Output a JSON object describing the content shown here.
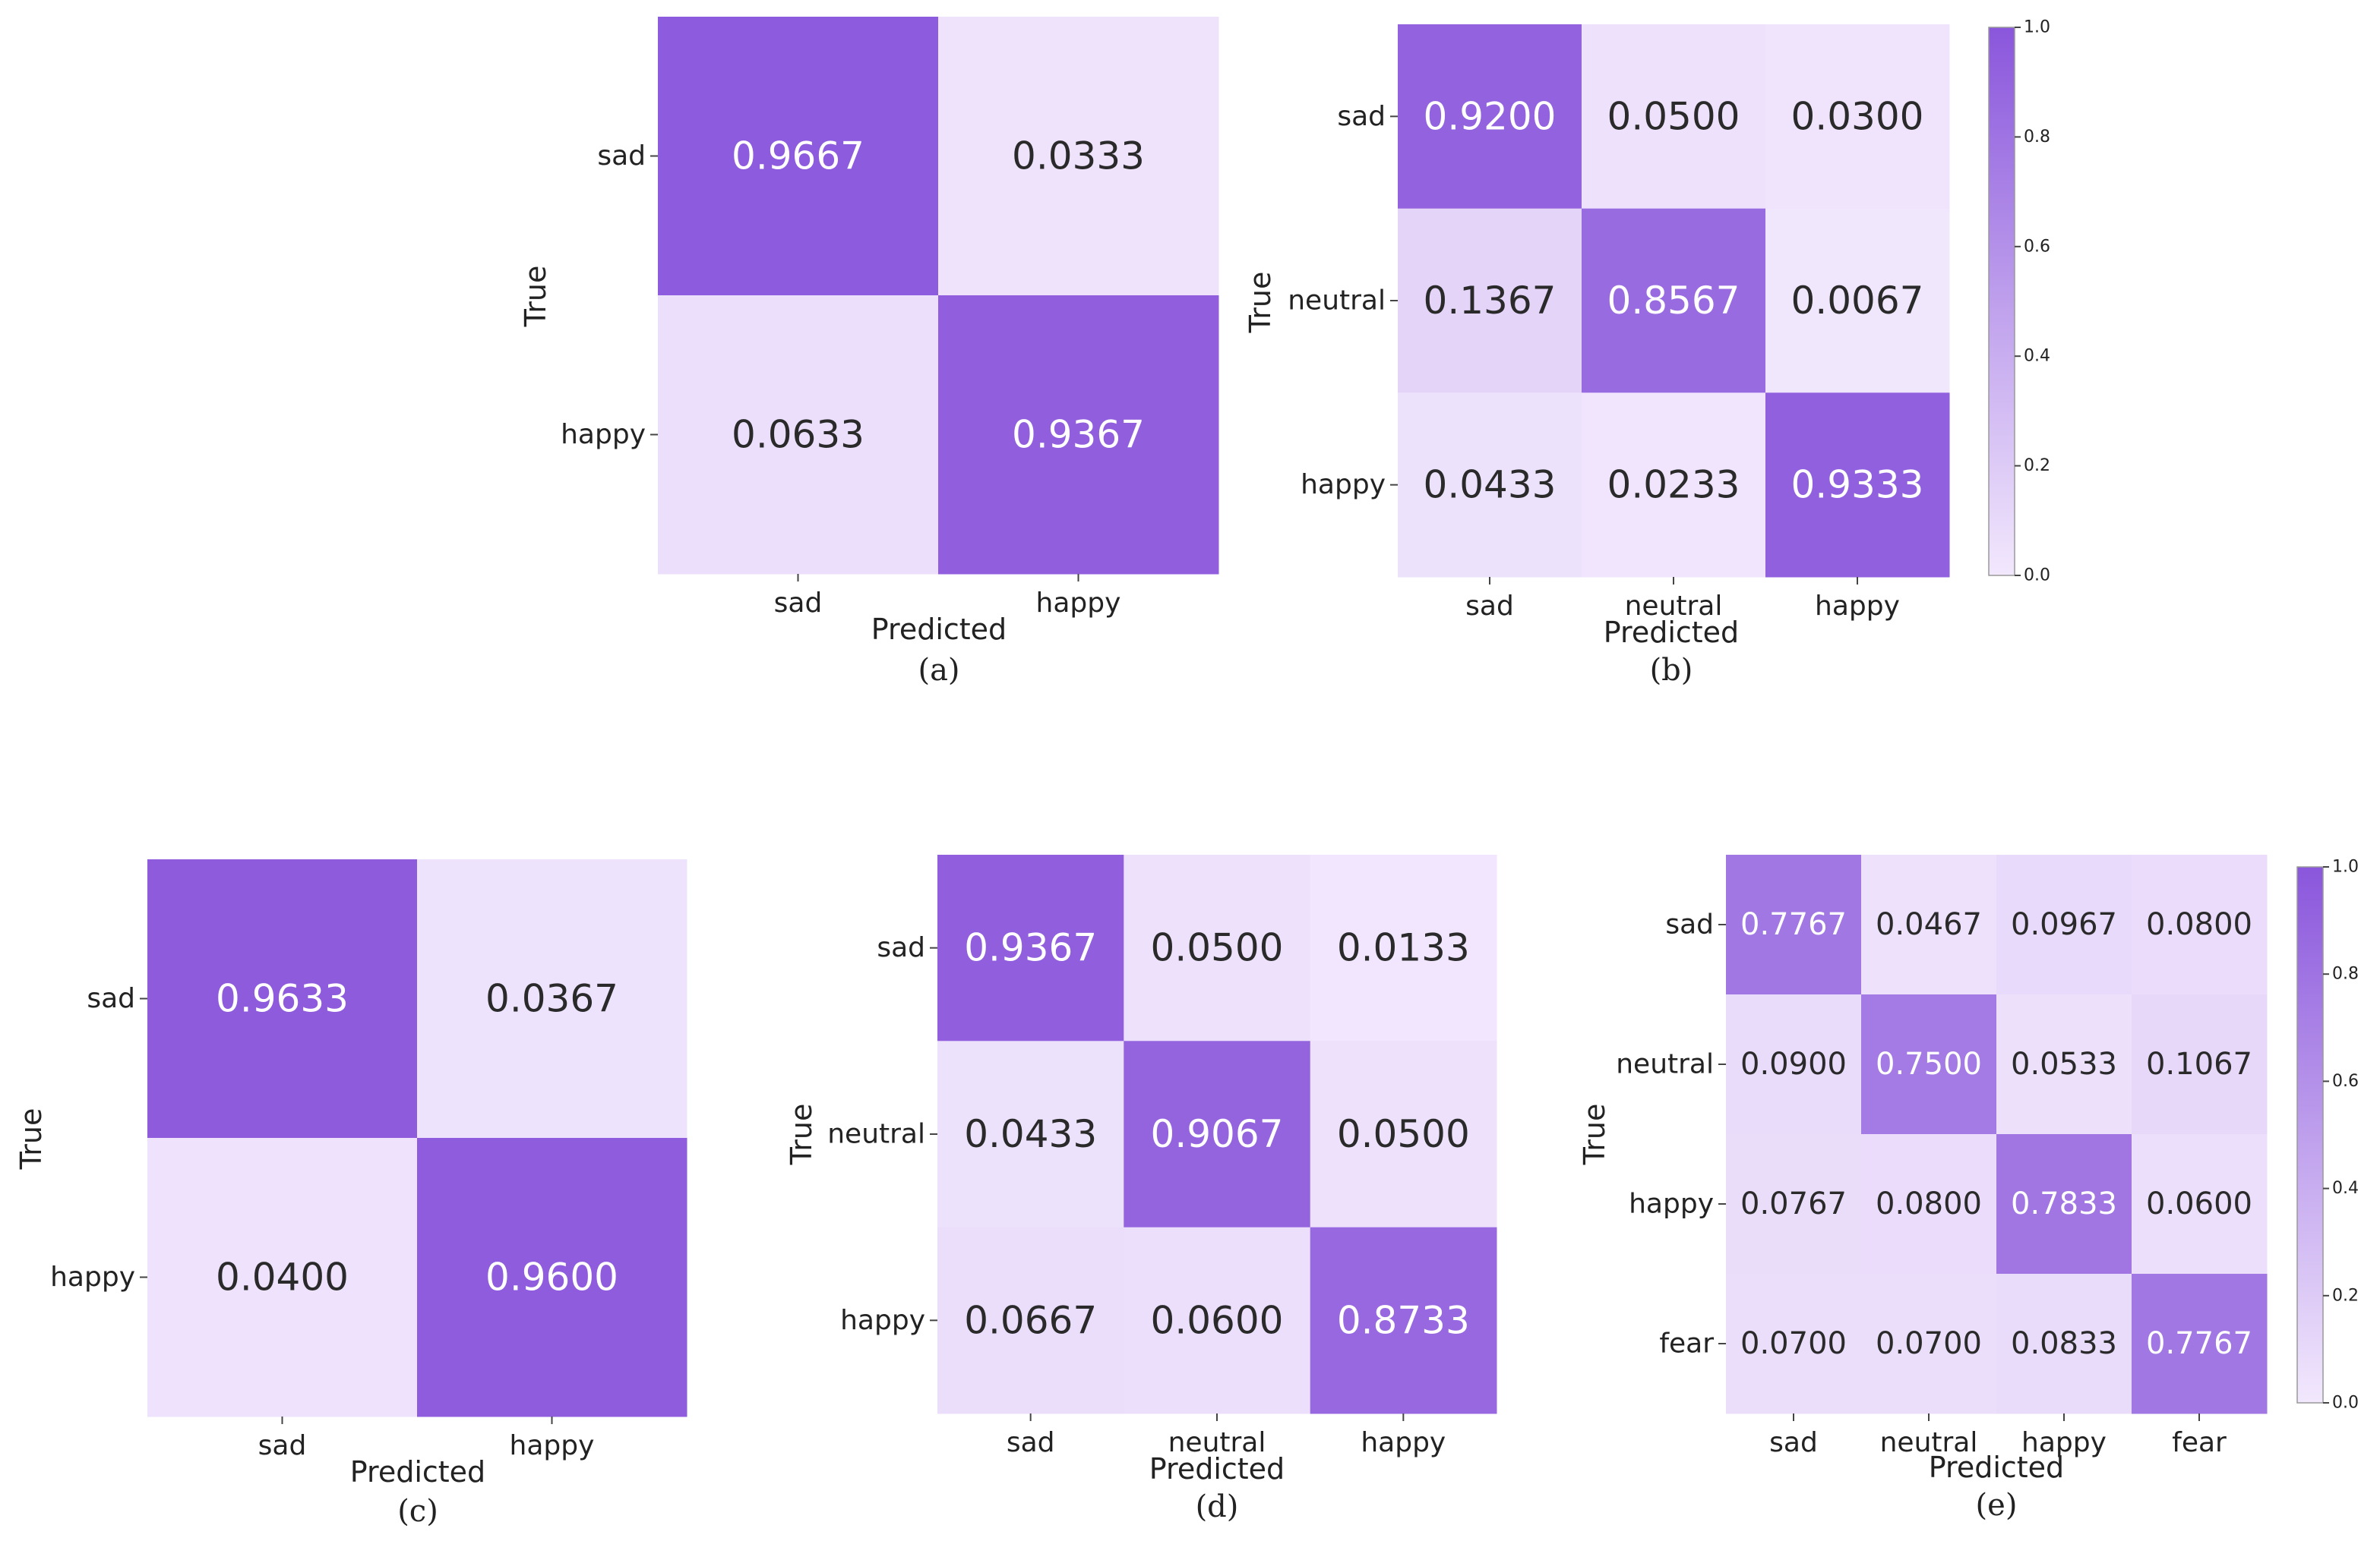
{
  "chart_data": [
    {
      "type": "heatmap",
      "caption": "(a)",
      "xlabel": "Predicted",
      "ylabel": "True",
      "x_categories": [
        "sad",
        "happy"
      ],
      "y_categories": [
        "sad",
        "happy"
      ],
      "matrix": [
        [
          0.9667,
          0.0333
        ],
        [
          0.0633,
          0.9367
        ]
      ],
      "vmin": 0.0,
      "vmax": 1.0,
      "colorbar": false
    },
    {
      "type": "heatmap",
      "caption": "(b)",
      "xlabel": "Predicted",
      "ylabel": "True",
      "x_categories": [
        "sad",
        "neutral",
        "happy"
      ],
      "y_categories": [
        "sad",
        "neutral",
        "happy"
      ],
      "matrix": [
        [
          0.92,
          0.05,
          0.03
        ],
        [
          0.1367,
          0.8567,
          0.0067
        ],
        [
          0.0433,
          0.0233,
          0.9333
        ]
      ],
      "vmin": 0.0,
      "vmax": 1.0,
      "colorbar": true,
      "colorbar_ticks": [
        "0.0",
        "0.2",
        "0.4",
        "0.6",
        "0.8",
        "1.0"
      ]
    },
    {
      "type": "heatmap",
      "caption": "(c)",
      "xlabel": "Predicted",
      "ylabel": "True",
      "x_categories": [
        "sad",
        "happy"
      ],
      "y_categories": [
        "sad",
        "happy"
      ],
      "matrix": [
        [
          0.9633,
          0.0367
        ],
        [
          0.04,
          0.96
        ]
      ],
      "vmin": 0.0,
      "vmax": 1.0,
      "colorbar": false
    },
    {
      "type": "heatmap",
      "caption": "(d)",
      "xlabel": "Predicted",
      "ylabel": "True",
      "x_categories": [
        "sad",
        "neutral",
        "happy"
      ],
      "y_categories": [
        "sad",
        "neutral",
        "happy"
      ],
      "matrix": [
        [
          0.9367,
          0.05,
          0.0133
        ],
        [
          0.0433,
          0.9067,
          0.05
        ],
        [
          0.0667,
          0.06,
          0.8733
        ]
      ],
      "vmin": 0.0,
      "vmax": 1.0,
      "colorbar": false
    },
    {
      "type": "heatmap",
      "caption": "(e)",
      "xlabel": "Predicted",
      "ylabel": "True",
      "x_categories": [
        "sad",
        "neutral",
        "happy",
        "fear"
      ],
      "y_categories": [
        "sad",
        "neutral",
        "happy",
        "fear"
      ],
      "matrix": [
        [
          0.7767,
          0.0467,
          0.0967,
          0.08
        ],
        [
          0.09,
          0.75,
          0.0533,
          0.1067
        ],
        [
          0.0767,
          0.08,
          0.7833,
          0.06
        ],
        [
          0.07,
          0.07,
          0.0833,
          0.7767
        ]
      ],
      "vmin": 0.0,
      "vmax": 1.0,
      "colorbar": true,
      "colorbar_ticks": [
        "0.0",
        "0.2",
        "0.4",
        "0.6",
        "0.8",
        "1.0"
      ]
    }
  ],
  "colors": {
    "low": "#f2e8fd",
    "high": "#8a56dc",
    "text_dark": "#2a2a2a",
    "text_light": "#ffffff"
  }
}
